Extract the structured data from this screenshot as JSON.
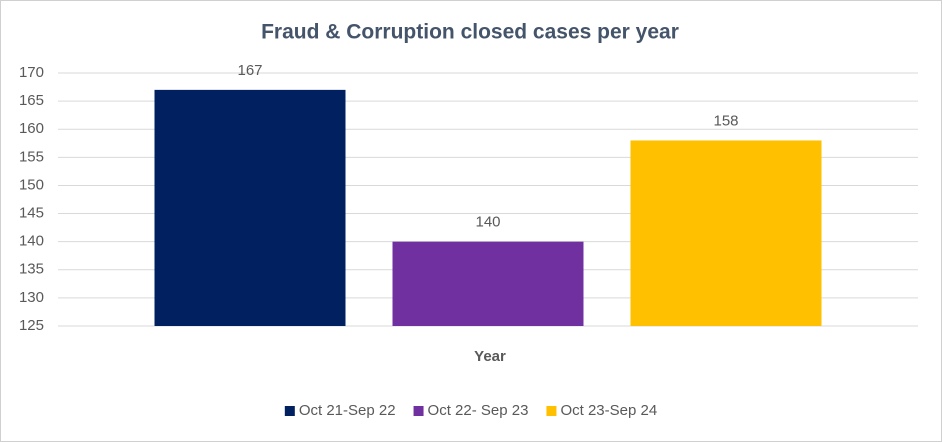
{
  "chart_data": {
    "type": "bar",
    "title": "Fraud & Corruption closed cases per year",
    "xlabel": "Year",
    "categories": [
      null
    ],
    "series": [
      {
        "name": "Oct 21-Sep 22",
        "color": "#002060",
        "values": [
          167
        ]
      },
      {
        "name": "Oct 22- Sep 23",
        "color": "#7030a0",
        "values": [
          140
        ]
      },
      {
        "name": "Oct 23-Sep 24",
        "color": "#ffc000",
        "values": [
          158
        ]
      }
    ],
    "ylim": [
      125,
      170
    ],
    "yticks": [
      125,
      130,
      135,
      140,
      145,
      150,
      155,
      160,
      165,
      170
    ],
    "grid": true,
    "legend": "bottom"
  }
}
